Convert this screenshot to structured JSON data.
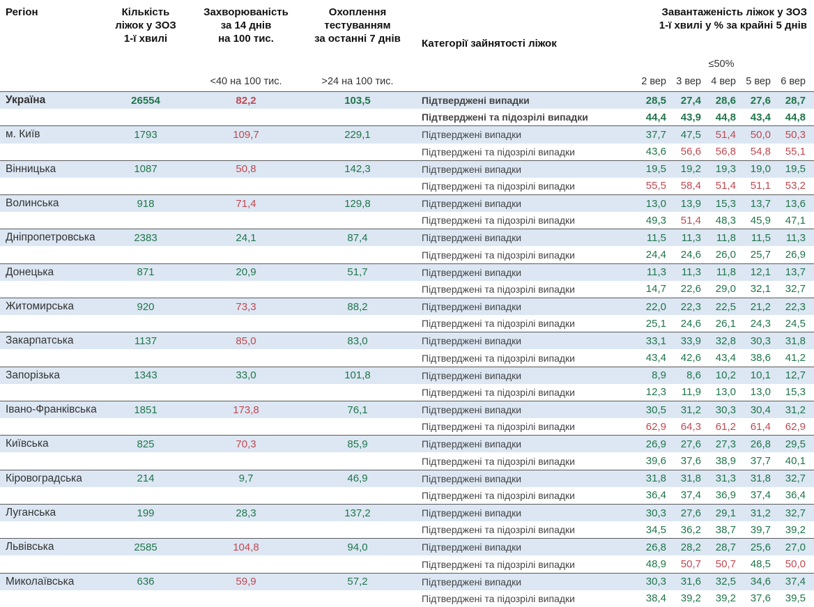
{
  "header": {
    "region": "Регіон",
    "beds": "Кількість\nліжок у ЗОЗ\n1-ї хвилі",
    "incidence": "Захворюваність\nза 14 днів\nна 100 тис.",
    "testing": "Охоплення\nтестуванням\nза останні 7 днів",
    "category": "Категорії зайнятості ліжок",
    "occupancy": "Завантаженість ліжок у ЗОЗ\n1-ї хвилі у % за крайні 5 днів",
    "occupancy_threshold": "≤50%",
    "incidence_threshold": "<40 на 100 тис.",
    "testing_threshold": ">24 на 100 тис.",
    "dates": [
      "2 вер",
      "3 вер",
      "4 вер",
      "5 вер",
      "6 вер"
    ]
  },
  "labels": {
    "confirmed": "Підтверджені випадки",
    "suspected": "Підтверджені та підозрілі випадки"
  },
  "colors": {
    "green": "#20754a",
    "red": "#bf4850",
    "band": "#dce7f3",
    "separator": "#595a5c"
  },
  "chart_data": {
    "type": "table",
    "title": "Завантаженість ліжок у ЗОЗ 1-ї хвилі у % за крайні 5 днів",
    "date_columns": [
      "2 вер",
      "3 вер",
      "4 вер",
      "5 вер",
      "6 вер"
    ],
    "regions": [
      {
        "name": "Україна",
        "bold": true,
        "beds": "26554",
        "incidence": "82,2",
        "incidence_color": "r",
        "testing": "103,5",
        "confirmed": [
          "28,5",
          "27,4",
          "28,6",
          "27,6",
          "28,7"
        ],
        "confirmed_colors": [
          "g",
          "g",
          "g",
          "g",
          "g"
        ],
        "suspected": [
          "44,4",
          "43,9",
          "44,8",
          "43,4",
          "44,8"
        ],
        "suspected_colors": [
          "g",
          "g",
          "g",
          "g",
          "g"
        ]
      },
      {
        "name": "м. Київ",
        "beds": "1793",
        "incidence": "109,7",
        "incidence_color": "r",
        "testing": "229,1",
        "confirmed": [
          "37,7",
          "47,5",
          "51,4",
          "50,0",
          "50,3"
        ],
        "confirmed_colors": [
          "g",
          "g",
          "r",
          "r",
          "r"
        ],
        "suspected": [
          "43,6",
          "56,6",
          "56,8",
          "54,8",
          "55,1"
        ],
        "suspected_colors": [
          "g",
          "r",
          "r",
          "r",
          "r"
        ]
      },
      {
        "name": "Вінницька",
        "beds": "1087",
        "incidence": "50,8",
        "incidence_color": "r",
        "testing": "142,3",
        "confirmed": [
          "19,5",
          "19,2",
          "19,3",
          "19,0",
          "19,5"
        ],
        "confirmed_colors": [
          "g",
          "g",
          "g",
          "g",
          "g"
        ],
        "suspected": [
          "55,5",
          "58,4",
          "51,4",
          "51,1",
          "53,2"
        ],
        "suspected_colors": [
          "r",
          "r",
          "r",
          "r",
          "r"
        ]
      },
      {
        "name": "Волинська",
        "beds": "918",
        "incidence": "71,4",
        "incidence_color": "r",
        "testing": "129,8",
        "confirmed": [
          "13,0",
          "13,9",
          "15,3",
          "13,7",
          "13,6"
        ],
        "confirmed_colors": [
          "g",
          "g",
          "g",
          "g",
          "g"
        ],
        "suspected": [
          "49,3",
          "51,4",
          "48,3",
          "45,9",
          "47,1"
        ],
        "suspected_colors": [
          "g",
          "r",
          "g",
          "g",
          "g"
        ]
      },
      {
        "name": "Дніпропетровська",
        "beds": "2383",
        "incidence": "24,1",
        "incidence_color": "g",
        "testing": "87,4",
        "confirmed": [
          "11,5",
          "11,3",
          "11,8",
          "11,5",
          "11,3"
        ],
        "confirmed_colors": [
          "g",
          "g",
          "g",
          "g",
          "g"
        ],
        "suspected": [
          "24,4",
          "24,6",
          "26,0",
          "25,7",
          "26,9"
        ],
        "suspected_colors": [
          "g",
          "g",
          "g",
          "g",
          "g"
        ]
      },
      {
        "name": "Донецька",
        "beds": "871",
        "incidence": "20,9",
        "incidence_color": "g",
        "testing": "51,7",
        "confirmed": [
          "11,3",
          "11,3",
          "11,8",
          "12,1",
          "13,7"
        ],
        "confirmed_colors": [
          "g",
          "g",
          "g",
          "g",
          "g"
        ],
        "suspected": [
          "14,7",
          "22,6",
          "29,0",
          "32,1",
          "32,7"
        ],
        "suspected_colors": [
          "g",
          "g",
          "g",
          "g",
          "g"
        ]
      },
      {
        "name": "Житомирська",
        "beds": "920",
        "incidence": "73,3",
        "incidence_color": "r",
        "testing": "88,2",
        "confirmed": [
          "22,0",
          "22,3",
          "22,5",
          "21,2",
          "22,3"
        ],
        "confirmed_colors": [
          "g",
          "g",
          "g",
          "g",
          "g"
        ],
        "suspected": [
          "25,1",
          "24,6",
          "26,1",
          "24,3",
          "24,5"
        ],
        "suspected_colors": [
          "g",
          "g",
          "g",
          "g",
          "g"
        ]
      },
      {
        "name": "Закарпатська",
        "beds": "1137",
        "incidence": "85,0",
        "incidence_color": "r",
        "testing": "83,0",
        "confirmed": [
          "33,1",
          "33,9",
          "32,8",
          "30,3",
          "31,8"
        ],
        "confirmed_colors": [
          "g",
          "g",
          "g",
          "g",
          "g"
        ],
        "suspected": [
          "43,4",
          "42,6",
          "43,4",
          "38,6",
          "41,2"
        ],
        "suspected_colors": [
          "g",
          "g",
          "g",
          "g",
          "g"
        ]
      },
      {
        "name": "Запорізька",
        "beds": "1343",
        "incidence": "33,0",
        "incidence_color": "g",
        "testing": "101,8",
        "confirmed": [
          "8,9",
          "8,6",
          "10,2",
          "10,1",
          "12,7"
        ],
        "confirmed_colors": [
          "g",
          "g",
          "g",
          "g",
          "g"
        ],
        "suspected": [
          "12,3",
          "11,9",
          "13,0",
          "13,0",
          "15,3"
        ],
        "suspected_colors": [
          "g",
          "g",
          "g",
          "g",
          "g"
        ]
      },
      {
        "name": "Івано-Франківська",
        "beds": "1851",
        "incidence": "173,8",
        "incidence_color": "r",
        "testing": "76,1",
        "confirmed": [
          "30,5",
          "31,2",
          "30,3",
          "30,4",
          "31,2"
        ],
        "confirmed_colors": [
          "g",
          "g",
          "g",
          "g",
          "g"
        ],
        "suspected": [
          "62,9",
          "64,3",
          "61,2",
          "61,4",
          "62,9"
        ],
        "suspected_colors": [
          "r",
          "r",
          "r",
          "r",
          "r"
        ]
      },
      {
        "name": "Київська",
        "beds": "825",
        "incidence": "70,3",
        "incidence_color": "r",
        "testing": "85,9",
        "confirmed": [
          "26,9",
          "27,6",
          "27,3",
          "26,8",
          "29,5"
        ],
        "confirmed_colors": [
          "g",
          "g",
          "g",
          "g",
          "g"
        ],
        "suspected": [
          "39,6",
          "37,6",
          "38,9",
          "37,7",
          "40,1"
        ],
        "suspected_colors": [
          "g",
          "g",
          "g",
          "g",
          "g"
        ]
      },
      {
        "name": "Кіровоградська",
        "beds": "214",
        "incidence": "9,7",
        "incidence_color": "g",
        "testing": "46,9",
        "confirmed": [
          "31,8",
          "31,8",
          "31,3",
          "31,8",
          "32,7"
        ],
        "confirmed_colors": [
          "g",
          "g",
          "g",
          "g",
          "g"
        ],
        "suspected": [
          "36,4",
          "37,4",
          "36,9",
          "37,4",
          "36,4"
        ],
        "suspected_colors": [
          "g",
          "g",
          "g",
          "g",
          "g"
        ]
      },
      {
        "name": "Луганська",
        "beds": "199",
        "incidence": "28,3",
        "incidence_color": "g",
        "testing": "137,2",
        "confirmed": [
          "30,3",
          "27,6",
          "29,1",
          "31,2",
          "32,7"
        ],
        "confirmed_colors": [
          "g",
          "g",
          "g",
          "g",
          "g"
        ],
        "suspected": [
          "34,5",
          "36,2",
          "38,7",
          "39,7",
          "39,2"
        ],
        "suspected_colors": [
          "g",
          "g",
          "g",
          "g",
          "g"
        ]
      },
      {
        "name": "Львівська",
        "beds": "2585",
        "incidence": "104,8",
        "incidence_color": "r",
        "testing": "94,0",
        "confirmed": [
          "26,8",
          "28,2",
          "28,7",
          "25,6",
          "27,0"
        ],
        "confirmed_colors": [
          "g",
          "g",
          "g",
          "g",
          "g"
        ],
        "suspected": [
          "48,9",
          "50,7",
          "50,7",
          "48,5",
          "50,0"
        ],
        "suspected_colors": [
          "g",
          "r",
          "r",
          "g",
          "r"
        ]
      },
      {
        "name": "Миколаївська",
        "beds": "636",
        "incidence": "59,9",
        "incidence_color": "r",
        "testing": "57,2",
        "confirmed": [
          "30,3",
          "31,6",
          "32,5",
          "34,6",
          "37,4"
        ],
        "confirmed_colors": [
          "g",
          "g",
          "g",
          "g",
          "g"
        ],
        "suspected": [
          "38,4",
          "39,2",
          "39,2",
          "37,6",
          "39,5"
        ],
        "suspected_colors": [
          "g",
          "g",
          "g",
          "g",
          "g"
        ]
      }
    ]
  }
}
